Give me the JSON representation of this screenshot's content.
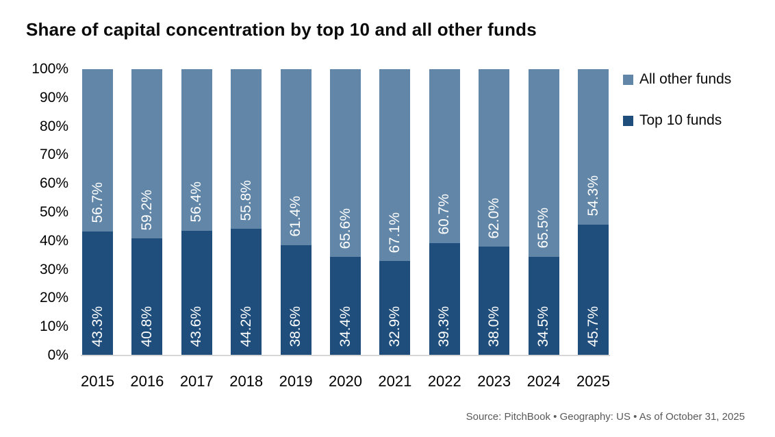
{
  "title": "Share of capital concentration by top 10 and all other funds",
  "source_note": "Source: PitchBook  •  Geography: US  •  As of October 31, 2025",
  "legend": {
    "position": "right",
    "items": [
      {
        "label": "All other funds",
        "color": "#6186a8"
      },
      {
        "label": "Top 10 funds",
        "color": "#1f4e7c"
      }
    ]
  },
  "colors": {
    "top_10_funds": "#1f4e7c",
    "all_other_funds": "#6186a8",
    "axis_line": "#d6d6d6",
    "value_label_text": "#ffffff",
    "source_text": "#595959"
  },
  "chart_data": {
    "type": "bar",
    "stacked": true,
    "stacked_to_100_percent": true,
    "title": "Share of capital concentration by top 10 and all other funds",
    "categories": [
      "2015",
      "2016",
      "2017",
      "2018",
      "2019",
      "2020",
      "2021",
      "2022",
      "2023",
      "2024",
      "2025"
    ],
    "series": [
      {
        "name": "Top 10 funds",
        "color": "#1f4e7c",
        "values": [
          43.3,
          40.8,
          43.6,
          44.2,
          38.6,
          34.4,
          32.9,
          39.3,
          38.0,
          34.5,
          45.7
        ],
        "labels": [
          "43.3%",
          "40.8%",
          "43.6%",
          "44.2%",
          "38.6%",
          "34.4%",
          "32.9%",
          "39.3%",
          "38.0%",
          "34.5%",
          "45.7%"
        ]
      },
      {
        "name": "All other funds",
        "color": "#6186a8",
        "values": [
          56.7,
          59.2,
          56.4,
          55.8,
          61.4,
          65.6,
          67.1,
          60.7,
          62.0,
          65.5,
          54.3
        ],
        "labels": [
          "56.7%",
          "59.2%",
          "56.4%",
          "55.8%",
          "61.4%",
          "65.6%",
          "67.1%",
          "60.7%",
          "62.0%",
          "65.5%",
          "54.3%"
        ]
      }
    ],
    "xlabel": "",
    "ylabel": "",
    "ylim": [
      0,
      100
    ],
    "yticks": [
      "0%",
      "10%",
      "20%",
      "30%",
      "40%",
      "50%",
      "60%",
      "70%",
      "80%",
      "90%",
      "100%"
    ],
    "grid": false,
    "value_labels": "inside-bottom-rotated-90",
    "legend_position": "right"
  }
}
